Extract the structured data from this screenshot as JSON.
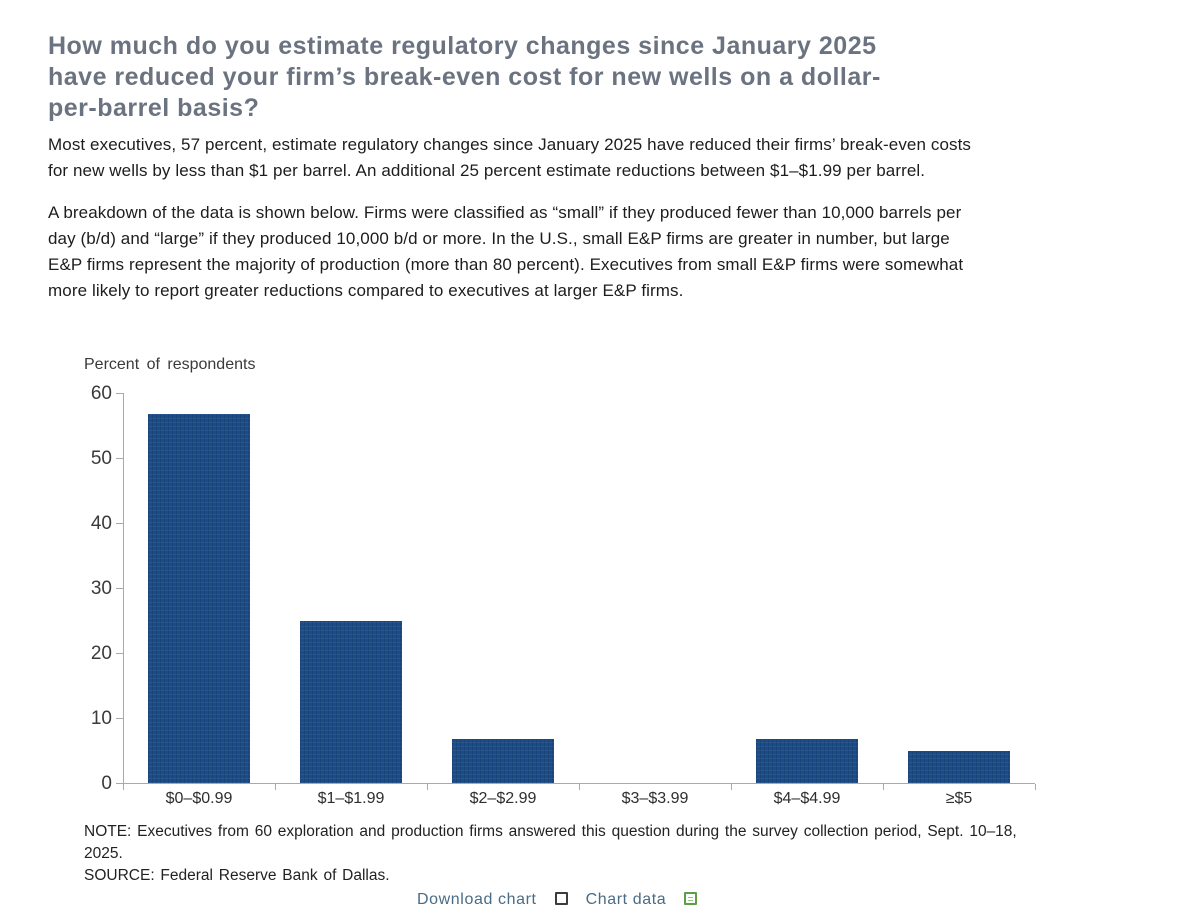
{
  "content": {
    "title_lines": [
      "How much do you estimate regulatory changes since January 2025",
      "have reduced your firm’s break-even cost for new wells on a dollar-",
      "per-barrel basis?"
    ],
    "paragraph1_lines": [
      "Most executives, 57 percent, estimate regulatory changes since January 2025 have reduced their firms’ break-even costs",
      "for new wells by less than $1 per barrel. An additional 25 percent estimate reductions between $1–$1.99 per barrel."
    ],
    "paragraph2_lines": [
      "A breakdown of the data is shown below. Firms were classified as “small” if they produced fewer than 10,000 barrels per",
      "day (b/d) and “large” if they produced 10,000 b/d or more. In the U.S., small E&P firms are greater in number, but large",
      "E&P firms represent the majority of production (more than 80 percent). Executives from small E&P firms were somewhat",
      "more likely to report greater reductions compared to executives at larger E&P firms."
    ],
    "note_lines": [
      "NOTE: Executives from 60 exploration and production firms answered this question during the survey collection period, Sept. 10–18,",
      "2025.",
      "SOURCE: Federal Reserve Bank of Dallas."
    ]
  },
  "chart_data": {
    "type": "bar",
    "title": "Percent of respondents",
    "ylabel": "Percent of respondents",
    "xlabel": "",
    "categories": [
      "$0–$0.99",
      "$1–$1.99",
      "$2–$2.99",
      "$3–$3.99",
      "$4–$4.99",
      "≥$5"
    ],
    "values": [
      56.7,
      25,
      6.7,
      0,
      6.7,
      5
    ],
    "ylim": [
      0,
      60
    ],
    "yticks": [
      0,
      10,
      20,
      30,
      40,
      50,
      60
    ],
    "grid": false,
    "legend": "none",
    "bar_color": "#1c4c88"
  },
  "footer": {
    "download_chart_label": "Download chart",
    "chart_data_label": "Chart data",
    "download_icon": "chart-image-icon",
    "excel_icon": "excel-file-icon"
  }
}
